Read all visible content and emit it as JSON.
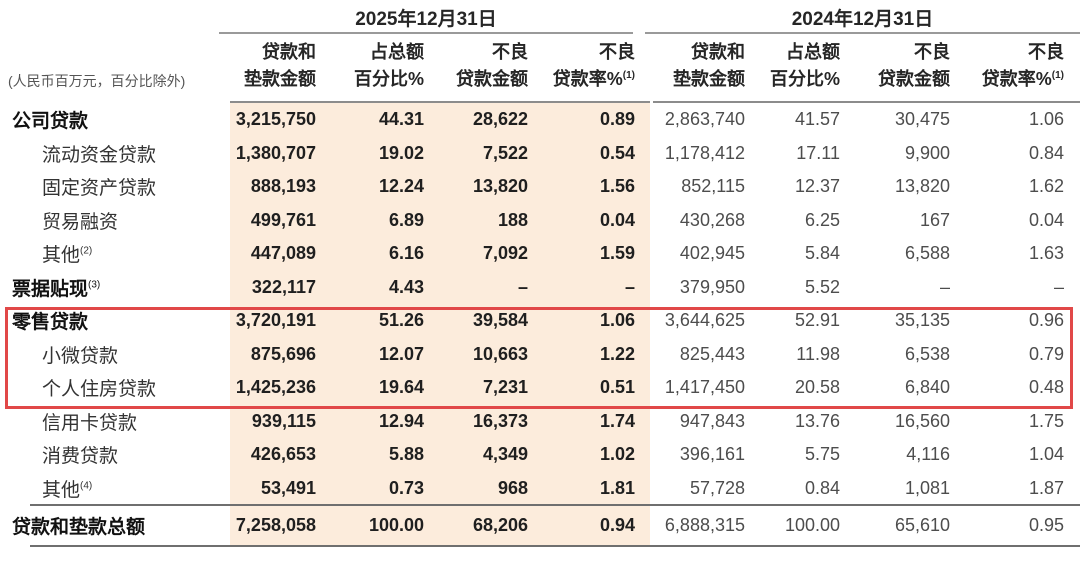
{
  "table": {
    "unit_note": "(人民币百万元，百分比除外)",
    "period_groups": [
      {
        "title": "2025年12月31日"
      },
      {
        "title": "2024年12月31日"
      }
    ],
    "column_headers": [
      {
        "line1": "贷款和",
        "line2": "垫款金额",
        "sup": ""
      },
      {
        "line1": "占总额",
        "line2": "百分比%",
        "sup": ""
      },
      {
        "line1": "不良",
        "line2": "贷款金额",
        "sup": ""
      },
      {
        "line1": "不良",
        "line2": "贷款率%",
        "sup": "(1)"
      }
    ],
    "rows": [
      {
        "label": "公司贷款",
        "sup": "",
        "style": "section",
        "highlighted": false,
        "y2025": [
          "3,215,750",
          "44.31",
          "28,622",
          "0.89"
        ],
        "y2024": [
          "2,863,740",
          "41.57",
          "30,475",
          "1.06"
        ]
      },
      {
        "label": "流动资金贷款",
        "sup": "",
        "style": "sub",
        "highlighted": false,
        "y2025": [
          "1,380,707",
          "19.02",
          "7,522",
          "0.54"
        ],
        "y2024": [
          "1,178,412",
          "17.11",
          "9,900",
          "0.84"
        ]
      },
      {
        "label": "固定资产贷款",
        "sup": "",
        "style": "sub",
        "highlighted": false,
        "y2025": [
          "888,193",
          "12.24",
          "13,820",
          "1.56"
        ],
        "y2024": [
          "852,115",
          "12.37",
          "13,820",
          "1.62"
        ]
      },
      {
        "label": "贸易融资",
        "sup": "",
        "style": "sub",
        "highlighted": false,
        "y2025": [
          "499,761",
          "6.89",
          "188",
          "0.04"
        ],
        "y2024": [
          "430,268",
          "6.25",
          "167",
          "0.04"
        ]
      },
      {
        "label": "其他",
        "sup": "(2)",
        "style": "sub",
        "highlighted": false,
        "y2025": [
          "447,089",
          "6.16",
          "7,092",
          "1.59"
        ],
        "y2024": [
          "402,945",
          "5.84",
          "6,588",
          "1.63"
        ]
      },
      {
        "label": "票据贴现",
        "sup": "(3)",
        "style": "section",
        "highlighted": false,
        "y2025": [
          "322,117",
          "4.43",
          "–",
          "–"
        ],
        "y2024": [
          "379,950",
          "5.52",
          "–",
          "–"
        ]
      },
      {
        "label": "零售贷款",
        "sup": "",
        "style": "section",
        "highlighted": true,
        "y2025": [
          "3,720,191",
          "51.26",
          "39,584",
          "1.06"
        ],
        "y2024": [
          "3,644,625",
          "52.91",
          "35,135",
          "0.96"
        ]
      },
      {
        "label": "小微贷款",
        "sup": "",
        "style": "sub",
        "highlighted": true,
        "y2025": [
          "875,696",
          "12.07",
          "10,663",
          "1.22"
        ],
        "y2024": [
          "825,443",
          "11.98",
          "6,538",
          "0.79"
        ]
      },
      {
        "label": "个人住房贷款",
        "sup": "",
        "style": "sub",
        "highlighted": true,
        "y2025": [
          "1,425,236",
          "19.64",
          "7,231",
          "0.51"
        ],
        "y2024": [
          "1,417,450",
          "20.58",
          "6,840",
          "0.48"
        ]
      },
      {
        "label": "信用卡贷款",
        "sup": "",
        "style": "sub",
        "highlighted": false,
        "y2025": [
          "939,115",
          "12.94",
          "16,373",
          "1.74"
        ],
        "y2024": [
          "947,843",
          "13.76",
          "16,560",
          "1.75"
        ]
      },
      {
        "label": "消费贷款",
        "sup": "",
        "style": "sub",
        "highlighted": false,
        "y2025": [
          "426,653",
          "5.88",
          "4,349",
          "1.02"
        ],
        "y2024": [
          "396,161",
          "5.75",
          "4,116",
          "1.04"
        ]
      },
      {
        "label": "其他",
        "sup": "(4)",
        "style": "sub",
        "highlighted": false,
        "y2025": [
          "53,491",
          "0.73",
          "968",
          "1.81"
        ],
        "y2024": [
          "57,728",
          "0.84",
          "1,081",
          "1.87"
        ]
      },
      {
        "label": "贷款和垫款总额",
        "sup": "",
        "style": "total",
        "highlighted": false,
        "y2025": [
          "7,258,058",
          "100.00",
          "68,206",
          "0.94"
        ],
        "y2024": [
          "6,888,315",
          "100.00",
          "65,610",
          "0.95"
        ]
      }
    ]
  },
  "annotation": {
    "highlight_box_color": "#e14848",
    "highlighted_row_labels": [
      "零售贷款",
      "小微贷款",
      "个人住房贷款"
    ]
  },
  "colors": {
    "band_2025": "#fcecdc",
    "rule": "#8c8c8c",
    "text_primary": "#1f1f1f",
    "text_secondary": "#4d4d4d"
  }
}
